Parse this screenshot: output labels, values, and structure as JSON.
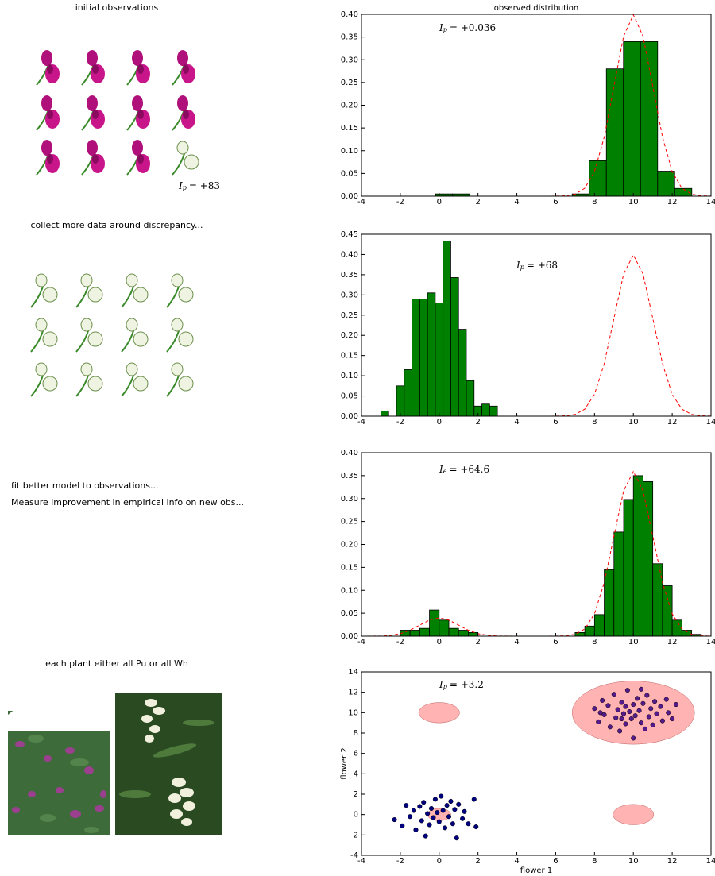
{
  "panels": [
    {
      "caption": "initial observations",
      "annotation": {
        "symbol": "I",
        "subscript": "p",
        "text": "= +83"
      }
    },
    {
      "caption": "collect more data around discrepancy..."
    },
    {
      "captions": [
        "fit better model to observations...",
        "Measure improvement in empirical info on new obs..."
      ]
    },
    {
      "caption": "each plant either all Pu or all Wh"
    }
  ],
  "chart_data": [
    {
      "type": "histogram",
      "title": "observed distribution",
      "color": "#008000",
      "annotation": {
        "symbol": "I",
        "subscript": "p",
        "text": "= +0.036"
      },
      "bins": [
        -0.19,
        0.69,
        1.57,
        2.45,
        3.33,
        4.21,
        5.09,
        5.97,
        6.85,
        7.73,
        8.61,
        9.49,
        10.37,
        11.25,
        12.13,
        13.01
      ],
      "values": [
        0.005,
        0.005,
        0,
        0,
        0,
        0,
        0,
        0,
        0.005,
        0.078,
        0.28,
        0.34,
        0.34,
        0.055,
        0.017
      ],
      "curve": {
        "color": "#ff0000",
        "x": [
          -4,
          -3.5,
          -3,
          -2.5,
          -2,
          -1.5,
          -1,
          -0.5,
          0,
          0.5,
          1,
          1.5,
          2,
          2.5,
          3,
          3.5,
          4,
          4.5,
          5,
          5.5,
          6,
          6.5,
          7,
          7.5,
          8,
          8.5,
          9,
          9.5,
          10,
          10.5,
          11,
          11.5,
          12,
          12.5,
          13,
          13.5,
          14
        ],
        "y": [
          0,
          0,
          0,
          0,
          0,
          0,
          0,
          0,
          0,
          0,
          0,
          0,
          0,
          0,
          0,
          0,
          0,
          0,
          0,
          0,
          0.0001,
          0.0009,
          0.0044,
          0.0175,
          0.054,
          0.13,
          0.242,
          0.352,
          0.399,
          0.352,
          0.242,
          0.13,
          0.054,
          0.0175,
          0.0044,
          0.0009,
          0.0001
        ]
      },
      "xlim": [
        -4,
        14
      ],
      "xticks": [
        -4,
        -2,
        0,
        2,
        4,
        6,
        8,
        10,
        12,
        14
      ],
      "ylim": [
        0,
        0.4
      ],
      "yticks": [
        {
          "value": 0,
          "label": "0.00"
        },
        {
          "value": 0.05,
          "label": "0.05"
        },
        {
          "value": 0.1,
          "label": "0.10"
        },
        {
          "value": 0.15,
          "label": "0.15"
        },
        {
          "value": 0.2,
          "label": "0.20"
        },
        {
          "value": 0.25,
          "label": "0.25"
        },
        {
          "value": 0.3,
          "label": "0.30"
        },
        {
          "value": 0.35,
          "label": "0.35"
        },
        {
          "value": 0.4,
          "label": "0.40"
        }
      ]
    },
    {
      "type": "histogram",
      "color": "#008000",
      "annotation": {
        "symbol": "I",
        "subscript": "p",
        "text": "= +68"
      },
      "bins": [
        -3.0,
        -2.6,
        -2.2,
        -1.8,
        -1.4,
        -1.0,
        -0.6,
        -0.2,
        0.2,
        0.6,
        1.0,
        1.4,
        1.8,
        2.2,
        2.6,
        3.0
      ],
      "values": [
        0.013,
        0,
        0.075,
        0.115,
        0.29,
        0.29,
        0.305,
        0.28,
        0.433,
        0.343,
        0.215,
        0.088,
        0.025,
        0.03,
        0.025
      ],
      "curve": {
        "color": "#ff0000",
        "x": [
          -4,
          -3.5,
          -3,
          -2.5,
          -2,
          -1.5,
          -1,
          -0.5,
          0,
          0.5,
          1,
          1.5,
          2,
          2.5,
          3,
          3.5,
          4,
          4.5,
          5,
          5.5,
          6,
          6.5,
          7,
          7.5,
          8,
          8.5,
          9,
          9.5,
          10,
          10.5,
          11,
          11.5,
          12,
          12.5,
          13,
          13.5,
          14
        ],
        "y": [
          0,
          0,
          0,
          0,
          0,
          0,
          0,
          0,
          0,
          0,
          0,
          0,
          0,
          0,
          0,
          0,
          0,
          0,
          0,
          0,
          0.0001,
          0.0009,
          0.0044,
          0.0175,
          0.054,
          0.13,
          0.242,
          0.352,
          0.399,
          0.352,
          0.242,
          0.13,
          0.054,
          0.0175,
          0.0044,
          0.0009,
          0.0001
        ]
      },
      "xlim": [
        -4,
        14
      ],
      "xticks": [
        -4,
        -2,
        0,
        2,
        4,
        6,
        8,
        10,
        12,
        14
      ],
      "ylim": [
        0,
        0.45
      ],
      "yticks": [
        {
          "value": 0,
          "label": "0.00"
        },
        {
          "value": 0.05,
          "label": "0.05"
        },
        {
          "value": 0.1,
          "label": "0.10"
        },
        {
          "value": 0.15,
          "label": "0.15"
        },
        {
          "value": 0.2,
          "label": "0.20"
        },
        {
          "value": 0.25,
          "label": "0.25"
        },
        {
          "value": 0.3,
          "label": "0.30"
        },
        {
          "value": 0.35,
          "label": "0.35"
        },
        {
          "value": 0.4,
          "label": "0.40"
        },
        {
          "value": 0.45,
          "label": "0.45"
        }
      ]
    },
    {
      "type": "histogram",
      "color": "#008000",
      "annotation": {
        "symbol": "I",
        "subscript": "e",
        "text": "= +64.6"
      },
      "bins": [
        -2,
        -1.5,
        -1,
        -0.5,
        0,
        0.5,
        1,
        1.5,
        2,
        2.5,
        3,
        3.5,
        4,
        4.5,
        5,
        5.5,
        6,
        6.5,
        7,
        7.5,
        8,
        8.5,
        9,
        9.5,
        10,
        10.5,
        11,
        11.5,
        12,
        12.5,
        13,
        13.5
      ],
      "values": [
        0.013,
        0.013,
        0.017,
        0.057,
        0.035,
        0.017,
        0.013,
        0.008,
        0,
        0,
        0,
        0,
        0,
        0,
        0,
        0,
        0,
        0,
        0.008,
        0.022,
        0.047,
        0.145,
        0.227,
        0.298,
        0.35,
        0.337,
        0.158,
        0.11,
        0.035,
        0.013,
        0.004
      ],
      "curve": {
        "color": "#ff0000",
        "x": [
          -4,
          -3.5,
          -3,
          -2.5,
          -2,
          -1.5,
          -1,
          -0.5,
          0,
          0.5,
          1,
          1.5,
          2,
          2.5,
          3,
          3.5,
          4,
          4.5,
          5,
          5.5,
          6,
          6.5,
          7,
          7.5,
          8,
          8.5,
          9,
          9.5,
          10,
          10.5,
          11,
          11.5,
          12,
          12.5,
          13,
          13.5,
          14
        ],
        "y": [
          0,
          0.0001,
          0.0004,
          0.0018,
          0.0054,
          0.013,
          0.024,
          0.035,
          0.04,
          0.035,
          0.024,
          0.013,
          0.0054,
          0.0018,
          0.0004,
          0.0001,
          0,
          0,
          0,
          0,
          0.0001,
          0.0008,
          0.004,
          0.0158,
          0.0486,
          0.117,
          0.218,
          0.317,
          0.359,
          0.317,
          0.218,
          0.117,
          0.0486,
          0.0158,
          0.004,
          0.0008,
          0.0001
        ]
      },
      "xlim": [
        -4,
        14
      ],
      "xticks": [
        -4,
        -2,
        0,
        2,
        4,
        6,
        8,
        10,
        12,
        14
      ],
      "ylim": [
        0,
        0.4
      ],
      "yticks": [
        {
          "value": 0,
          "label": "0.00"
        },
        {
          "value": 0.05,
          "label": "0.05"
        },
        {
          "value": 0.1,
          "label": "0.10"
        },
        {
          "value": 0.15,
          "label": "0.15"
        },
        {
          "value": 0.2,
          "label": "0.20"
        },
        {
          "value": 0.25,
          "label": "0.25"
        },
        {
          "value": 0.3,
          "label": "0.30"
        },
        {
          "value": 0.35,
          "label": "0.35"
        },
        {
          "value": 0.4,
          "label": "0.40"
        }
      ]
    },
    {
      "type": "scatter",
      "x_label": "flower 1",
      "y_label": "flower 2",
      "annotation": {
        "symbol": "I",
        "subscript": "p",
        "text": "= +3.2"
      },
      "ellipse_color": "#ff9999",
      "ellipses": [
        {
          "cx": 10,
          "cy": 10,
          "width": 6.3,
          "height": 6.2
        },
        {
          "cx": 0,
          "cy": 10,
          "width": 2.1,
          "height": 2.0
        },
        {
          "cx": 10,
          "cy": 0,
          "width": 2.1,
          "height": 2.0
        },
        {
          "cx": 0,
          "cy": 0,
          "width": 1.2,
          "height": 1.2
        }
      ],
      "series": [
        {
          "color": "#000080",
          "x": [
            -2.3,
            -1.9,
            -1.7,
            -1.5,
            -1.3,
            -1.2,
            -1.0,
            -0.9,
            -0.8,
            -0.6,
            -0.5,
            -0.4,
            -0.3,
            -0.2,
            -0.1,
            0.0,
            0.1,
            0.2,
            0.3,
            0.4,
            0.5,
            0.6,
            0.7,
            0.8,
            0.9,
            1.0,
            1.2,
            1.3,
            1.5,
            1.8,
            1.9,
            -0.7
          ],
          "y": [
            -0.5,
            -1.1,
            0.9,
            -0.2,
            0.4,
            -1.5,
            0.8,
            -0.6,
            1.2,
            0.1,
            -1.0,
            0.6,
            -0.3,
            1.5,
            0.2,
            -0.7,
            1.8,
            0.4,
            -1.3,
            0.9,
            -0.2,
            1.3,
            -0.9,
            0.5,
            -2.3,
            1.0,
            -0.4,
            0.3,
            -0.9,
            1.5,
            -1.2,
            -2.1
          ]
        },
        {
          "color": "#551a8b",
          "x": [
            8.0,
            8.2,
            8.4,
            8.5,
            8.7,
            8.8,
            9.0,
            9.1,
            9.2,
            9.3,
            9.4,
            9.5,
            9.6,
            9.6,
            9.7,
            9.8,
            9.9,
            10.0,
            10.0,
            10.1,
            10.2,
            10.3,
            10.4,
            10.5,
            10.6,
            10.7,
            10.8,
            10.9,
            11.0,
            11.1,
            11.2,
            11.4,
            11.5,
            11.7,
            11.8,
            12.0,
            12.2,
            9.4,
            10.4,
            8.3
          ],
          "y": [
            10.4,
            9.1,
            11.2,
            9.8,
            10.7,
            8.6,
            11.8,
            9.5,
            10.3,
            8.2,
            11.0,
            9.9,
            10.6,
            8.9,
            12.2,
            10.1,
            9.4,
            10.8,
            7.5,
            9.7,
            11.4,
            10.2,
            9.0,
            10.9,
            8.4,
            11.7,
            9.6,
            10.4,
            8.8,
            11.1,
            9.9,
            10.6,
            9.2,
            11.3,
            10.0,
            9.4,
            10.8,
            9.4,
            12.3,
            10.0
          ]
        }
      ],
      "xlim": [
        -4,
        14
      ],
      "xticks": [
        -4,
        -2,
        0,
        2,
        4,
        6,
        8,
        10,
        12,
        14
      ],
      "ylim": [
        -4,
        14
      ],
      "yticks": [
        -4,
        -2,
        0,
        2,
        4,
        6,
        8,
        10,
        12,
        14
      ]
    }
  ]
}
